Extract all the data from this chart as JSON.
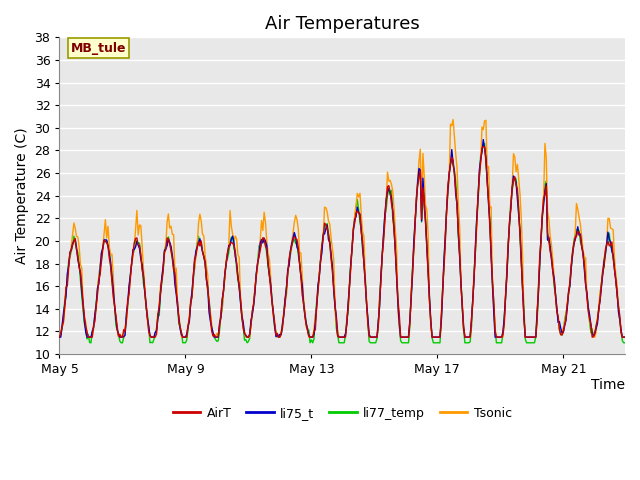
{
  "title": "Air Temperatures",
  "xlabel": "Time",
  "ylabel": "Air Temperature (C)",
  "ylim": [
    10,
    38
  ],
  "yticks": [
    10,
    12,
    14,
    16,
    18,
    20,
    22,
    24,
    26,
    28,
    30,
    32,
    34,
    36,
    38
  ],
  "xtick_labels": [
    "May 5",
    "May 9",
    "May 13",
    "May 17",
    "May 21"
  ],
  "annotation_text": "MB_tule",
  "annotation_color": "#800000",
  "annotation_bg": "#ffffcc",
  "annotation_border": "#999900",
  "line_colors": {
    "AirT": "#cc0000",
    "li75_t": "#0000cc",
    "li77_temp": "#00cc00",
    "Tsonic": "#ff9900"
  },
  "fig_facecolor": "#ffffff",
  "plot_facecolor": "#e8e8e8",
  "grid_color": "#ffffff",
  "title_fontsize": 13,
  "axis_label_fontsize": 10,
  "tick_fontsize": 9,
  "n_points": 432,
  "points_per_day": 24
}
